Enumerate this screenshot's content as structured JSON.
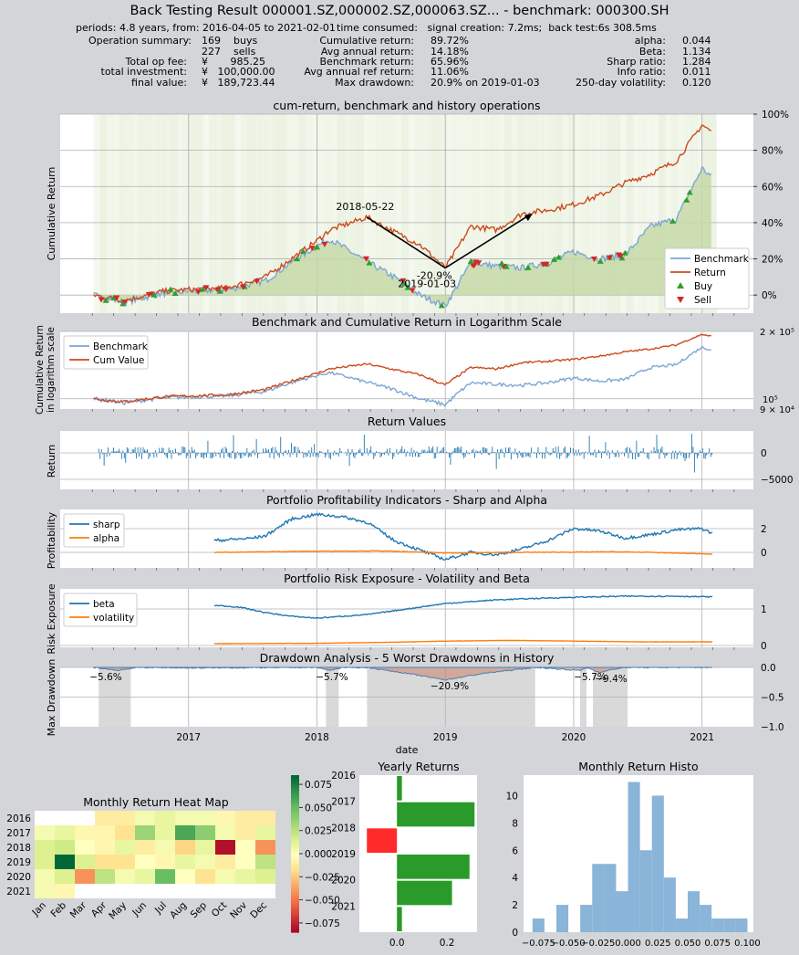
{
  "header": {
    "title": "Back Testing Result 000001.SZ,000002.SZ,000063.SZ... - benchmark: 000300.SH",
    "periods": "periods: 4.8 years, from: 2016-04-05 to 2021-02-01",
    "time_consumed": "time consumed:   signal creation: 7.2ms;  back test:6s 308.5ms",
    "left": [
      {
        "label": "Operation summary:",
        "value": "169",
        "unit": "buys"
      },
      {
        "label": "",
        "value": "227",
        "unit": "sells"
      },
      {
        "label": "Total op fee:",
        "value": "¥       985.25",
        "unit": ""
      },
      {
        "label": "total investment:",
        "value": "¥   100,000.00",
        "unit": ""
      },
      {
        "label": "final value:",
        "value": "¥   189,723.44",
        "unit": ""
      }
    ],
    "middle": [
      {
        "label": "Cumulative return:",
        "value": "89.72%"
      },
      {
        "label": "Avg annual return:",
        "value": "14.18%"
      },
      {
        "label": "Benchmark return:",
        "value": "65.96%"
      },
      {
        "label": "Avg annual ref return:",
        "value": "11.06%"
      },
      {
        "label": "Max drawdown:",
        "value": "20.9% on 2019-01-03"
      }
    ],
    "right": [
      {
        "label": "alpha:",
        "value": "0.044"
      },
      {
        "label": "Beta:",
        "value": "1.134"
      },
      {
        "label": "Sharp ratio:",
        "value": "1.284"
      },
      {
        "label": "Info ratio:",
        "value": "0.011"
      },
      {
        "label": "250-day volatility:",
        "value": "0.120"
      }
    ]
  },
  "colors": {
    "benchmark": "#7ea6d4",
    "return": "#cc4b1c",
    "buy": "#2ca02c",
    "sell": "#d62728",
    "c1": "#1f77b4",
    "c2": "#ff7f0e",
    "fill": "#c5d9a8",
    "drawdown_band": "#d9d9d9"
  },
  "chart_data": [
    {
      "type": "line",
      "title": "cum-return, benchmark and history operations",
      "ylabel": "Cumulative Return",
      "x_range": [
        "2016-04-05",
        "2021-02-01"
      ],
      "x_ticks": [],
      "y_ticks": [
        "0%",
        "20%",
        "40%",
        "60%",
        "80%",
        "100%"
      ],
      "ylim": [
        -0.1,
        1.0
      ],
      "series": [
        {
          "name": "Return",
          "x": [
            2016.26,
            2016.5,
            2016.8,
            2017.0,
            2017.3,
            2017.6,
            2017.8,
            2018.0,
            2018.1,
            2018.39,
            2018.6,
            2018.8,
            2019.0,
            2019.2,
            2019.4,
            2019.6,
            2019.8,
            2020.0,
            2020.2,
            2020.4,
            2020.6,
            2020.8,
            2021.0,
            2021.08
          ],
          "values": [
            0,
            -0.03,
            0.02,
            0.03,
            0.04,
            0.1,
            0.2,
            0.3,
            0.36,
            0.43,
            0.35,
            0.28,
            0.15,
            0.38,
            0.36,
            0.45,
            0.47,
            0.5,
            0.55,
            0.62,
            0.67,
            0.74,
            0.94,
            0.9
          ]
        },
        {
          "name": "Benchmark",
          "x": [
            2016.26,
            2016.5,
            2016.8,
            2017.0,
            2017.3,
            2017.6,
            2017.8,
            2018.0,
            2018.1,
            2018.4,
            2018.6,
            2018.8,
            2019.0,
            2019.2,
            2019.4,
            2019.6,
            2019.8,
            2020.0,
            2020.2,
            2020.4,
            2020.6,
            2020.8,
            2021.0,
            2021.08
          ],
          "values": [
            0,
            -0.04,
            0.01,
            0.02,
            0.03,
            0.08,
            0.18,
            0.27,
            0.31,
            0.18,
            0.1,
            0.0,
            -0.06,
            0.18,
            0.16,
            0.15,
            0.18,
            0.24,
            0.2,
            0.22,
            0.38,
            0.42,
            0.7,
            0.65
          ]
        }
      ],
      "legend": [
        "Benchmark",
        "Return",
        "Buy",
        "Sell"
      ],
      "annotations": [
        {
          "text": "2018-05-22",
          "x": 2018.39,
          "y": 0.43
        },
        {
          "text": "-20.9%",
          "x": 2019.0,
          "y": 0.15
        },
        {
          "text": "2019-01-03",
          "x": 2019.0,
          "y": 0.1
        }
      ]
    },
    {
      "type": "line",
      "title": "Benchmark and Cumulative Return in Logarithm Scale",
      "ylabel": "Cumulative Return\nin logarithm scale",
      "y_scale": "log",
      "y_ticks": [
        "2 × 10⁵",
        "10⁵",
        "9 × 10⁴"
      ],
      "ylim": [
        90000,
        200000
      ],
      "series": [
        {
          "name": "Benchmark",
          "x": [
            2016.26,
            2016.5,
            2016.8,
            2017.0,
            2017.3,
            2017.6,
            2017.8,
            2018.0,
            2018.1,
            2018.4,
            2018.6,
            2018.8,
            2019.0,
            2019.2,
            2019.4,
            2019.6,
            2019.8,
            2020.0,
            2020.2,
            2020.4,
            2020.6,
            2020.8,
            2021.0,
            2021.08
          ],
          "values": [
            100000,
            96000,
            101000,
            102000,
            103000,
            108000,
            118000,
            127000,
            131000,
            118000,
            110000,
            100000,
            94000,
            118000,
            116000,
            115000,
            118000,
            124000,
            120000,
            122000,
            138000,
            142000,
            170000,
            165000
          ]
        },
        {
          "name": "Cum Value",
          "x": [
            2016.26,
            2016.5,
            2016.8,
            2017.0,
            2017.3,
            2017.6,
            2017.8,
            2018.0,
            2018.1,
            2018.39,
            2018.6,
            2018.8,
            2019.0,
            2019.2,
            2019.4,
            2019.6,
            2019.8,
            2020.0,
            2020.2,
            2020.4,
            2020.6,
            2020.8,
            2021.0,
            2021.08
          ],
          "values": [
            100000,
            97000,
            102000,
            103000,
            104000,
            110000,
            120000,
            130000,
            136000,
            143000,
            135000,
            128000,
            115000,
            138000,
            136000,
            145000,
            147000,
            150000,
            155000,
            162000,
            167000,
            174000,
            194000,
            189723
          ]
        }
      ],
      "legend": [
        "Benchmark",
        "Cum Value"
      ]
    },
    {
      "type": "bar",
      "title": "Return Values",
      "ylabel": "Return",
      "y_ticks": [
        "0",
        "−5000"
      ]
    },
    {
      "type": "line",
      "title": "Portfolio Profitability Indicators - Sharp and Alpha",
      "ylabel": "Profitability",
      "y_ticks": [
        "2",
        "0"
      ],
      "series": [
        {
          "name": "sharp",
          "x": [
            2017.2,
            2017.5,
            2017.6,
            2017.8,
            2018.0,
            2018.2,
            2018.4,
            2018.6,
            2018.8,
            2019.0,
            2019.2,
            2019.4,
            2019.6,
            2019.8,
            2020.0,
            2020.2,
            2020.4,
            2020.6,
            2020.8,
            2021.0,
            2021.08
          ],
          "values": [
            1.0,
            1.2,
            1.4,
            2.8,
            3.2,
            3.0,
            2.5,
            1.0,
            0.2,
            -0.6,
            0.0,
            -0.2,
            0.3,
            1.0,
            2.0,
            1.8,
            1.2,
            1.5,
            1.9,
            2.0,
            1.6
          ]
        },
        {
          "name": "alpha",
          "x": [
            2017.2,
            2017.6,
            2018.0,
            2018.5,
            2019.0,
            2019.5,
            2020.0,
            2020.3,
            2020.6,
            2021.08
          ],
          "values": [
            0.0,
            0.05,
            0.1,
            0.12,
            -0.05,
            0.0,
            0.02,
            0.05,
            0.0,
            -0.15
          ]
        }
      ],
      "legend": [
        "sharp",
        "alpha"
      ]
    },
    {
      "type": "line",
      "title": "Portfolio Risk Exposure - Volatility and Beta",
      "ylabel": "Risk Exposure",
      "y_ticks": [
        "1",
        "0"
      ],
      "series": [
        {
          "name": "beta",
          "x": [
            2017.2,
            2017.4,
            2017.6,
            2017.8,
            2018.0,
            2018.4,
            2018.8,
            2019.0,
            2019.4,
            2019.8,
            2020.0,
            2020.4,
            2020.8,
            2021.08
          ],
          "values": [
            1.1,
            1.05,
            0.9,
            0.8,
            0.75,
            0.85,
            1.05,
            1.15,
            1.25,
            1.3,
            1.32,
            1.35,
            1.35,
            1.33
          ]
        },
        {
          "name": "volatility",
          "x": [
            2017.2,
            2018.0,
            2018.6,
            2019.0,
            2019.5,
            2020.0,
            2020.5,
            2021.08
          ],
          "values": [
            0.05,
            0.06,
            0.09,
            0.12,
            0.14,
            0.12,
            0.1,
            0.1
          ]
        }
      ],
      "legend": [
        "beta",
        "volatility"
      ]
    },
    {
      "type": "area",
      "title": "Drawdown Analysis - 5 Worst Drawdowns in History",
      "ylabel": "Max Drawdown",
      "xlabel": "date",
      "y_ticks": [
        "0.0",
        "−0.5",
        "−1.0"
      ],
      "x_ticks": [
        "2017",
        "2018",
        "2019",
        "2020",
        "2021"
      ],
      "ylim": [
        -1.0,
        0.0
      ],
      "annotations": [
        "−5.6%",
        "−5.7%",
        "−20.9%",
        "−5.7%",
        "−9.4%"
      ]
    },
    {
      "type": "heatmap",
      "title": "Monthly Return Heat Map",
      "rows": [
        "2016",
        "2017",
        "2018",
        "2019",
        "2020",
        "2021"
      ],
      "columns": [
        "Jan",
        "Feb",
        "Mar",
        "Apr",
        "May",
        "Jun",
        "Jul",
        "Aug",
        "Sep",
        "Oct",
        "Nov",
        "Dec"
      ],
      "values": [
        [
          null,
          null,
          null,
          -0.01,
          -0.01,
          0.005,
          0.01,
          0.005,
          0.005,
          -0.005,
          -0.01,
          -0.01
        ],
        [
          0.005,
          0.01,
          -0.005,
          -0.005,
          -0.015,
          0.035,
          0.01,
          0.06,
          0.04,
          0.005,
          -0.01,
          0.01
        ],
        [
          0.015,
          0.02,
          0.0,
          -0.005,
          0.01,
          -0.01,
          0.005,
          -0.02,
          0.01,
          -0.08,
          0.0,
          -0.04
        ],
        [
          0.015,
          0.09,
          0.015,
          -0.015,
          -0.015,
          0.0,
          -0.005,
          0.01,
          0.005,
          -0.01,
          0.0,
          0.025
        ],
        [
          0.005,
          0.015,
          -0.04,
          0.025,
          0.005,
          0.01,
          0.05,
          0.0,
          -0.015,
          0.005,
          0.01,
          0.015
        ],
        [
          0.005,
          -0.005,
          null,
          null,
          null,
          null,
          null,
          null,
          null,
          null,
          null,
          null
        ]
      ],
      "colorbar_ticks": [
        "0.075",
        "0.050",
        "0.025",
        "0.000",
        "−0.025",
        "−0.050",
        "−0.075"
      ]
    },
    {
      "type": "bar",
      "title": "Yearly Returns",
      "categories": [
        "2016",
        "2017",
        "2018",
        "2019",
        "2020",
        "2021"
      ],
      "values": [
        0.02,
        0.31,
        -0.12,
        0.29,
        0.22,
        0.02
      ],
      "x_ticks": [
        "0.0",
        "0.2"
      ]
    },
    {
      "type": "bar",
      "title": "Monthly Return Histo",
      "bins": [
        -0.08,
        -0.07,
        -0.06,
        -0.05,
        -0.04,
        -0.03,
        -0.02,
        -0.01,
        0.0,
        0.01,
        0.02,
        0.03,
        0.04,
        0.05,
        0.06,
        0.07,
        0.08,
        0.09
      ],
      "values": [
        1,
        0,
        2,
        0,
        2,
        5,
        5,
        3,
        11,
        6,
        10,
        4,
        1,
        3,
        2,
        1,
        1,
        1
      ],
      "x_ticks": [
        "−0.075",
        "−0.050",
        "−0.025",
        "0.000",
        "0.025",
        "0.050",
        "0.075",
        "0.100"
      ],
      "y_ticks": [
        "0",
        "2",
        "4",
        "6",
        "8",
        "10"
      ]
    }
  ]
}
